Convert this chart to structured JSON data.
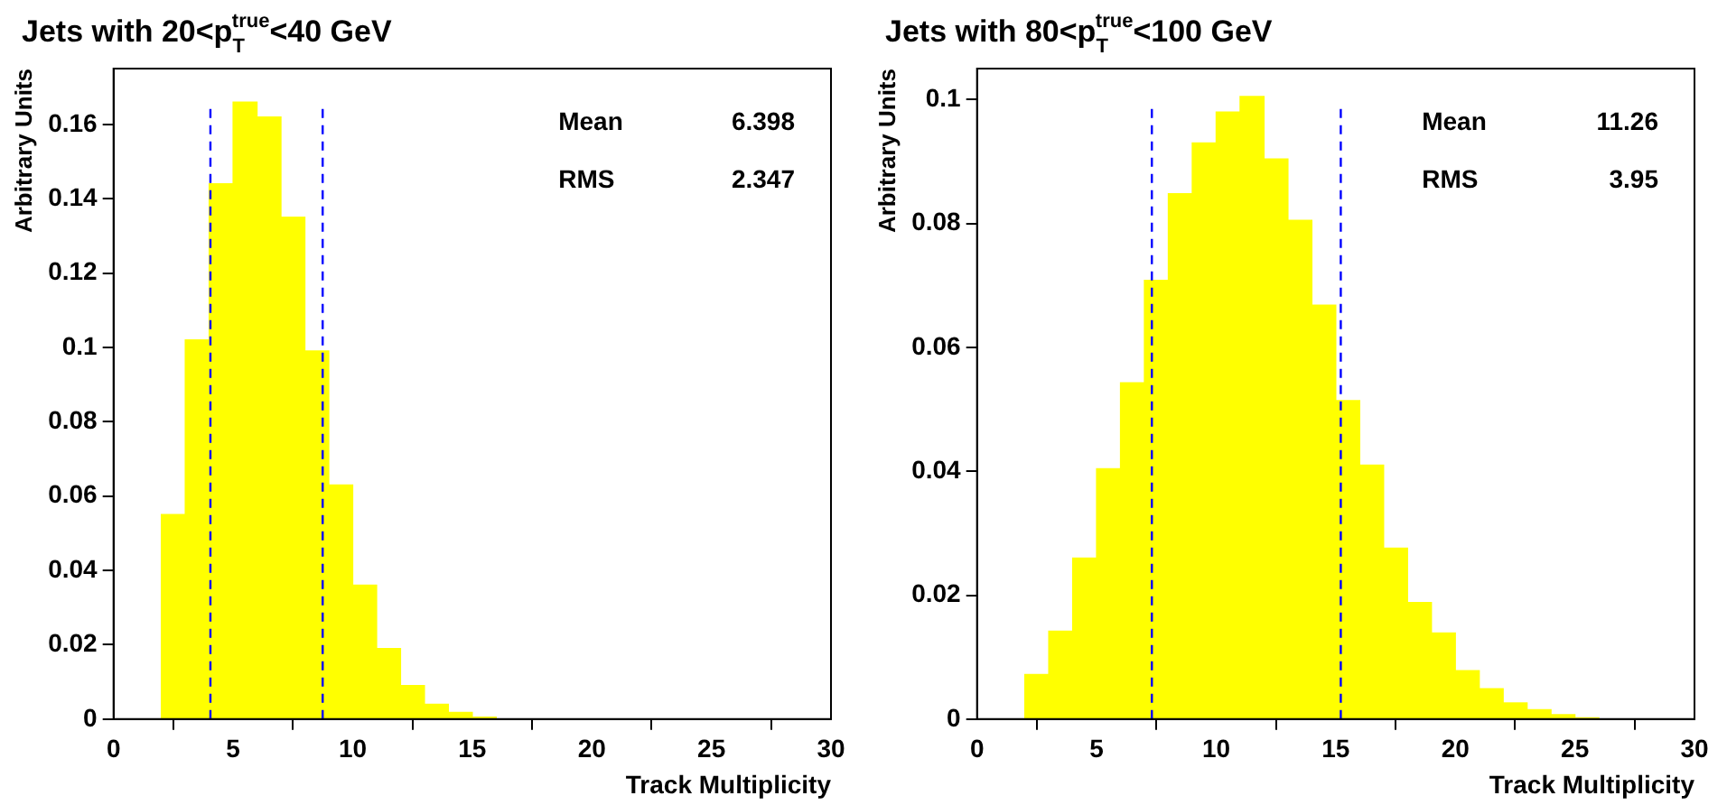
{
  "chart_data": [
    {
      "type": "histogram",
      "title": "Jets with 20<p$_{T}$$^{true}$<40 GeV",
      "xlabel": "Track Multiplicity",
      "ylabel": "Arbitrary Units",
      "bins": [
        0,
        1,
        2,
        3,
        4,
        5,
        6,
        7,
        8,
        9,
        10,
        11,
        12,
        13,
        14,
        15,
        16,
        17,
        18,
        19,
        20,
        21,
        22,
        23,
        24,
        25,
        26,
        27,
        28,
        29,
        30
      ],
      "values": [
        0,
        0,
        0.055,
        0.102,
        0.144,
        0.166,
        0.162,
        0.135,
        0.099,
        0.063,
        0.036,
        0.019,
        0.009,
        0.004,
        0.0018,
        0.0005,
        0,
        0,
        0,
        0,
        0,
        0,
        0,
        0,
        0,
        0,
        0,
        0,
        0,
        0
      ],
      "color": "#ffff00",
      "xlim": [
        0,
        30
      ],
      "xticks": [
        0,
        5,
        10,
        15,
        20,
        25,
        30
      ],
      "ylim": [
        0,
        0.175
      ],
      "yticks": [
        0,
        0.02,
        0.04,
        0.06,
        0.08,
        0.1,
        0.12,
        0.14,
        0.16
      ],
      "ref_lines": [
        {
          "axis": "x",
          "value": 4.051,
          "color": "#0000ff",
          "line_style": "dashed"
        },
        {
          "axis": "x",
          "value": 8.745,
          "color": "#0000ff",
          "line_style": "dashed"
        }
      ],
      "annotations": [
        "Mean 6.398",
        "RMS 2.347"
      ],
      "legend": false,
      "grid": false
    },
    {
      "type": "histogram",
      "title": "Jets with 80<p$_{T}$$^{true}$<100 GeV",
      "xlabel": "Track Multiplicity",
      "ylabel": "Arbitrary Units",
      "bins": [
        0,
        1,
        2,
        3,
        4,
        5,
        6,
        7,
        8,
        9,
        10,
        11,
        12,
        13,
        14,
        15,
        16,
        17,
        18,
        19,
        20,
        21,
        22,
        23,
        24,
        25,
        26,
        27,
        28,
        29,
        30
      ],
      "values": [
        0,
        0,
        0.0072,
        0.0142,
        0.026,
        0.0404,
        0.0543,
        0.0708,
        0.0848,
        0.093,
        0.098,
        0.1005,
        0.0904,
        0.0805,
        0.0668,
        0.0514,
        0.041,
        0.0276,
        0.0188,
        0.0139,
        0.0078,
        0.0049,
        0.0026,
        0.0015,
        0.0007,
        0.0002,
        0,
        0,
        0,
        0
      ],
      "color": "#ffff00",
      "xlim": [
        0,
        30
      ],
      "xticks": [
        0,
        5,
        10,
        15,
        20,
        25,
        30
      ],
      "ylim": [
        0,
        0.105
      ],
      "yticks": [
        0,
        0.02,
        0.04,
        0.06,
        0.08,
        0.1
      ],
      "ref_lines": [
        {
          "axis": "x",
          "value": 7.31,
          "color": "#0000ff",
          "line_style": "dashed"
        },
        {
          "axis": "x",
          "value": 15.21,
          "color": "#0000ff",
          "line_style": "dashed"
        }
      ],
      "annotations": [
        "Mean 11.26",
        "RMS 3.95"
      ],
      "legend": false,
      "grid": false
    }
  ]
}
